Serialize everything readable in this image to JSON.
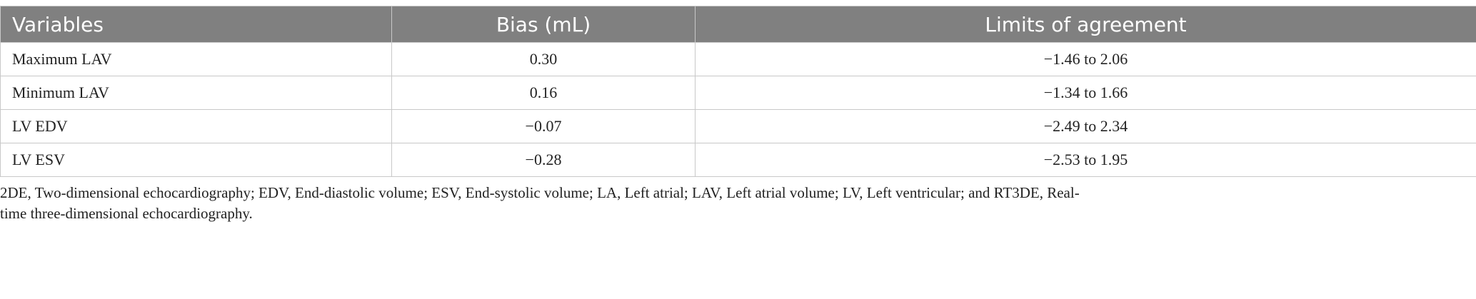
{
  "table": {
    "header": [
      "Variables",
      "Bias (mL)",
      "Limits of agreement"
    ],
    "rows": [
      [
        "Maximum LAV",
        "0.30",
        "−1.46 to 2.06"
      ],
      [
        "Minimum LAV",
        "0.16",
        "−1.34 to 1.66"
      ],
      [
        "LV EDV",
        "−0.07",
        "−2.49 to 2.34"
      ],
      [
        "LV ESV",
        "−0.28",
        "−2.53 to 1.95"
      ]
    ]
  },
  "footnote": "2DE, Two-dimensional echocardiography; EDV, End-diastolic volume; ESV, End-systolic volume; LA, Left atrial; LAV, Left atrial volume; LV, Left ventricular; and RT3DE, Real-time three-dimensional echocardiography."
}
